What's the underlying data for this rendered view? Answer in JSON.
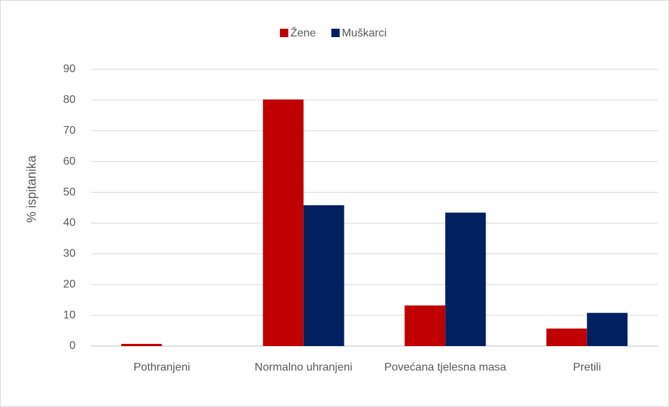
{
  "chart_data": {
    "type": "bar",
    "y_label": "% ispitanika",
    "categories": [
      "Pothranjeni",
      "Normalno uhranjeni",
      "Povećana tjelesna masa",
      "Pretili"
    ],
    "series": [
      {
        "name": "Žene",
        "color": "#c00000",
        "values": [
          0.7,
          80.2,
          13.2,
          5.7
        ]
      },
      {
        "name": "Muškarci",
        "color": "#002060",
        "values": [
          0,
          45.8,
          43.4,
          10.8
        ]
      }
    ],
    "ylim": [
      0,
      90
    ],
    "yticks": [
      0,
      10,
      20,
      30,
      40,
      50,
      60,
      70,
      80,
      90
    ],
    "grid": true,
    "legend": "top"
  }
}
